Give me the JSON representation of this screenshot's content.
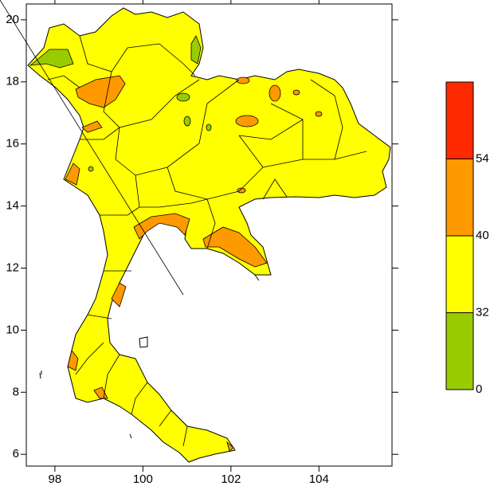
{
  "chart_data": {
    "type": "map",
    "xlim": [
      97.35,
      105.66
    ],
    "ylim": [
      5.62,
      20.51
    ],
    "xticks": [
      98,
      100,
      102,
      104
    ],
    "yticks": [
      6,
      8,
      10,
      12,
      14,
      16,
      18,
      20
    ],
    "colorbar": {
      "ticks": [
        0,
        32,
        40,
        54
      ],
      "colors": [
        "#99cc00",
        "#ffff00",
        "#ff9900",
        "#ff2a00"
      ]
    }
  }
}
